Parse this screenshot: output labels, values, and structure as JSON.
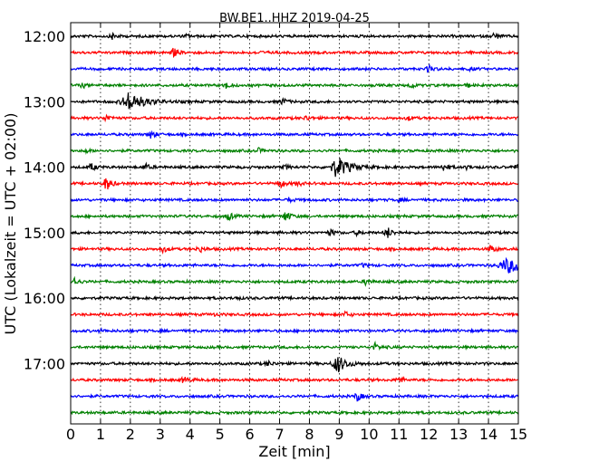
{
  "chart_data": {
    "type": "line",
    "title": "BW.BE1..HHZ 2019-04-25",
    "xlabel": "Zeit  [min]",
    "ylabel": "UTC (Lokalzeit = UTC + 02:00)",
    "xlim": [
      0,
      15
    ],
    "x_ticks": [
      0,
      1,
      2,
      3,
      4,
      5,
      6,
      7,
      8,
      9,
      10,
      11,
      12,
      13,
      14,
      15
    ],
    "y_tick_labels": [
      "12:00",
      "13:00",
      "14:00",
      "15:00",
      "16:00",
      "17:00"
    ],
    "grid": "vertical-dotted",
    "trace_colors": [
      "#000000",
      "#ff0000",
      "#0000ff",
      "#008000"
    ],
    "row_start_time": "12:00",
    "row_interval_min": 15,
    "rows": [
      {
        "start": "12:00",
        "color": "#000000",
        "events": [
          {
            "t": 1.4,
            "amp": 0.3
          },
          {
            "t": 3.9,
            "amp": 0.15
          },
          {
            "t": 14.2,
            "amp": 0.3
          }
        ]
      },
      {
        "start": "12:15",
        "color": "#ff0000",
        "events": [
          {
            "t": 3.45,
            "amp": 0.4
          },
          {
            "t": 6.3,
            "amp": 0.12
          }
        ]
      },
      {
        "start": "12:30",
        "color": "#0000ff",
        "events": [
          {
            "t": 12.0,
            "amp": 0.3
          },
          {
            "t": 13.4,
            "amp": 0.12
          }
        ]
      },
      {
        "start": "12:45",
        "color": "#008000",
        "events": [
          {
            "t": 0.4,
            "amp": 0.2
          },
          {
            "t": 5.2,
            "amp": 0.3
          },
          {
            "t": 11.4,
            "amp": 0.25
          },
          {
            "t": 13.3,
            "amp": 0.15
          }
        ]
      },
      {
        "start": "13:00",
        "color": "#000000",
        "events": [
          {
            "t": 2.0,
            "amp": 0.9,
            "width": 0.5
          },
          {
            "t": 7.1,
            "amp": 0.3
          }
        ]
      },
      {
        "start": "13:15",
        "color": "#ff0000",
        "events": [
          {
            "t": 1.2,
            "amp": 0.3
          },
          {
            "t": 7.9,
            "amp": 0.2
          },
          {
            "t": 11.3,
            "amp": 0.2
          }
        ]
      },
      {
        "start": "13:30",
        "color": "#0000ff",
        "events": [
          {
            "t": 2.7,
            "amp": 0.35
          }
        ]
      },
      {
        "start": "13:45",
        "color": "#008000",
        "events": [
          {
            "t": 0.5,
            "amp": 0.15
          },
          {
            "t": 6.3,
            "amp": 0.2
          }
        ]
      },
      {
        "start": "14:00",
        "color": "#000000",
        "events": [
          {
            "t": 0.7,
            "amp": 0.35
          },
          {
            "t": 2.5,
            "amp": 0.3
          },
          {
            "t": 7.2,
            "amp": 0.2
          },
          {
            "t": 8.95,
            "amp": 1.0,
            "width": 0.4
          },
          {
            "t": 12.5,
            "amp": 0.35
          },
          {
            "t": 13.3,
            "amp": 0.2
          },
          {
            "t": 14.9,
            "amp": 0.2
          }
        ]
      },
      {
        "start": "14:15",
        "color": "#ff0000",
        "events": [
          {
            "t": 1.2,
            "amp": 0.7
          },
          {
            "t": 7.0,
            "amp": 0.4
          },
          {
            "t": 7.6,
            "amp": 0.2
          }
        ]
      },
      {
        "start": "14:30",
        "color": "#0000ff",
        "events": [
          {
            "t": 7.3,
            "amp": 0.2
          },
          {
            "t": 11.0,
            "amp": 0.12
          }
        ]
      },
      {
        "start": "14:45",
        "color": "#008000",
        "events": [
          {
            "t": 5.3,
            "amp": 0.35
          },
          {
            "t": 7.2,
            "amp": 0.55
          }
        ]
      },
      {
        "start": "15:00",
        "color": "#000000",
        "events": [
          {
            "t": 8.7,
            "amp": 0.3
          },
          {
            "t": 9.6,
            "amp": 0.2
          },
          {
            "t": 10.6,
            "amp": 0.6
          }
        ]
      },
      {
        "start": "15:15",
        "color": "#ff0000",
        "events": [
          {
            "t": 3.1,
            "amp": 0.3
          },
          {
            "t": 4.3,
            "amp": 0.35
          },
          {
            "t": 14.1,
            "amp": 0.35
          }
        ]
      },
      {
        "start": "15:30",
        "color": "#0000ff",
        "events": [
          {
            "t": 9.8,
            "amp": 0.15
          },
          {
            "t": 14.7,
            "amp": 0.7,
            "width": 0.6
          }
        ]
      },
      {
        "start": "15:45",
        "color": "#008000",
        "events": [
          {
            "t": 0.1,
            "amp": 0.45
          },
          {
            "t": 9.9,
            "amp": 0.3
          }
        ]
      },
      {
        "start": "16:00",
        "color": "#000000",
        "events": [
          {
            "t": 5.5,
            "amp": 0.12
          }
        ]
      },
      {
        "start": "16:15",
        "color": "#ff0000",
        "events": [
          {
            "t": 9.2,
            "amp": 0.25
          },
          {
            "t": 4.8,
            "amp": 0.1
          }
        ]
      },
      {
        "start": "16:30",
        "color": "#0000ff",
        "events": [
          {
            "t": 1.0,
            "amp": 0.1
          }
        ]
      },
      {
        "start": "16:45",
        "color": "#008000",
        "events": [
          {
            "t": 10.2,
            "amp": 0.35
          }
        ]
      },
      {
        "start": "17:00",
        "color": "#000000",
        "events": [
          {
            "t": 6.6,
            "amp": 0.25
          },
          {
            "t": 8.95,
            "amp": 0.85,
            "width": 0.3
          }
        ]
      },
      {
        "start": "17:15",
        "color": "#ff0000",
        "events": [
          {
            "t": 3.8,
            "amp": 0.3
          },
          {
            "t": 11.0,
            "amp": 0.3
          }
        ]
      },
      {
        "start": "17:30",
        "color": "#0000ff",
        "events": [
          {
            "t": 9.6,
            "amp": 0.45
          }
        ]
      },
      {
        "start": "17:45",
        "color": "#008000",
        "events": []
      }
    ]
  }
}
